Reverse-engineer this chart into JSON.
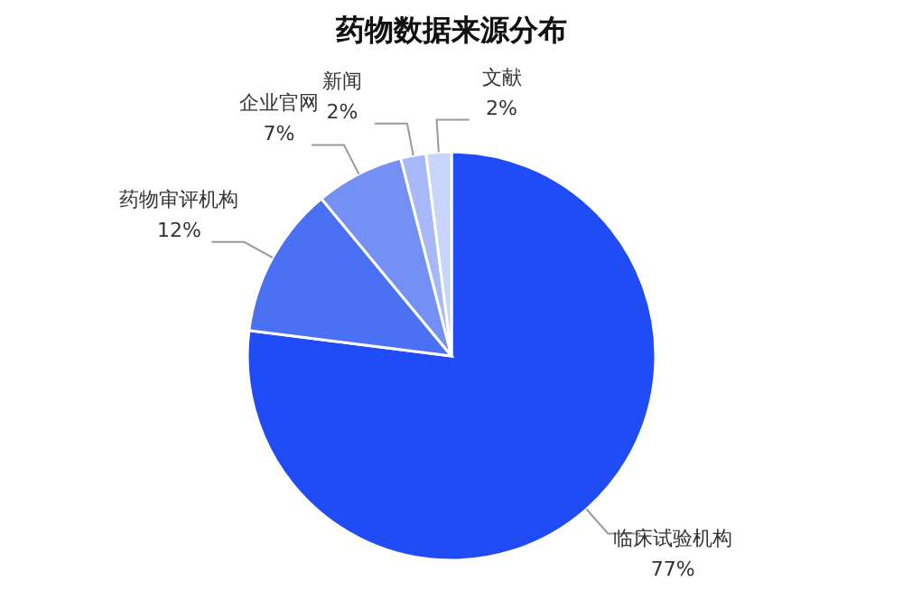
{
  "chart_data": {
    "type": "pie",
    "title": "药物数据来源分布",
    "categories": [
      "临床试验机构",
      "药物审评机构",
      "企业官网",
      "新闻",
      "文献"
    ],
    "values": [
      77,
      12,
      7,
      2,
      2
    ],
    "value_labels": [
      "77%",
      "12%",
      "7%",
      "2%",
      "2%"
    ],
    "colors": [
      "#1f4cf5",
      "#4a70f3",
      "#7590f5",
      "#a6b8f7",
      "#c9d4fa"
    ]
  }
}
